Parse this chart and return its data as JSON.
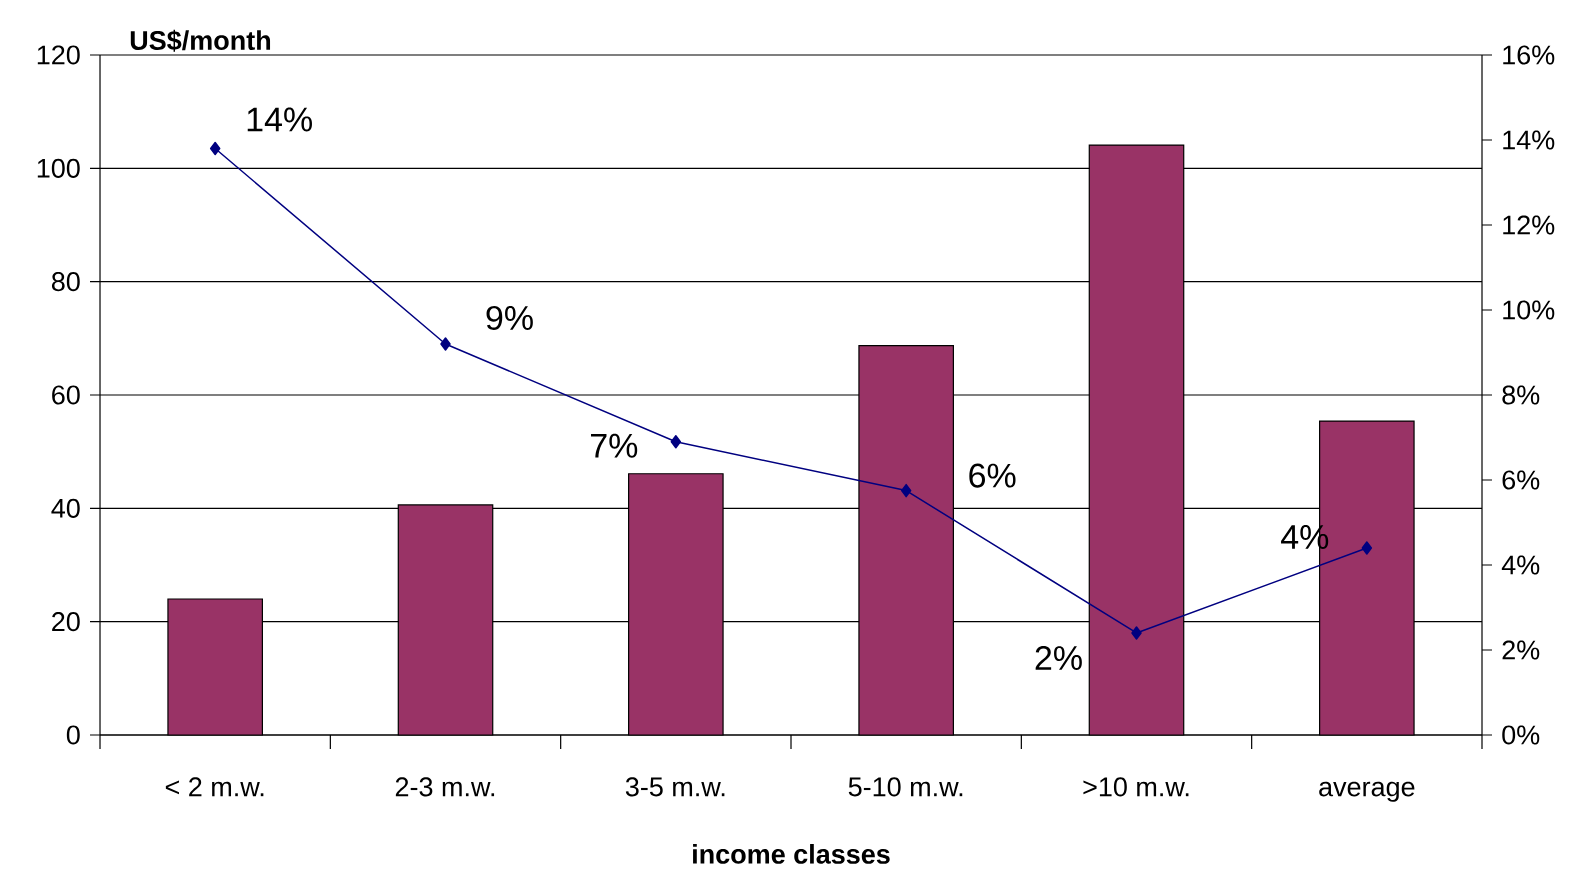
{
  "chart_data": {
    "type": "bar",
    "xlabel": "income classes",
    "ylabel": "US$/month",
    "categories": [
      "< 2 m.w.",
      "2-3 m.w.",
      "3-5 m.w.",
      "5-10 m.w.",
      ">10 m.w.",
      "average"
    ],
    "series": [
      {
        "color": "#993366",
        "values": [
          24,
          40.6,
          46.1,
          68.7,
          104.1,
          55.4
        ]
      },
      {
        "type": "line",
        "axis": "y2",
        "color": "#000080",
        "marker": "diamond",
        "values": [
          13.8,
          9.2,
          6.9,
          5.75,
          2.4,
          4.4
        ],
        "value_labels": [
          "14%",
          "9%",
          "7%",
          "6%",
          "2%",
          "4%"
        ]
      }
    ],
    "ylim": [
      0,
      120
    ],
    "yticks": [
      0,
      20,
      40,
      60,
      80,
      100,
      120
    ],
    "y2lim": [
      0,
      16
    ],
    "y2ticks": [
      {
        "value": 0,
        "label": "0%"
      },
      {
        "value": 2,
        "label": "2%"
      },
      {
        "value": 4,
        "label": "4%"
      },
      {
        "value": 6,
        "label": "6%"
      },
      {
        "value": 8,
        "label": "8%"
      },
      {
        "value": 10,
        "label": "10%"
      },
      {
        "value": 12,
        "label": "12%"
      },
      {
        "value": 14,
        "label": "14%"
      },
      {
        "value": 16,
        "label": "16%"
      }
    ],
    "grid": "y"
  }
}
